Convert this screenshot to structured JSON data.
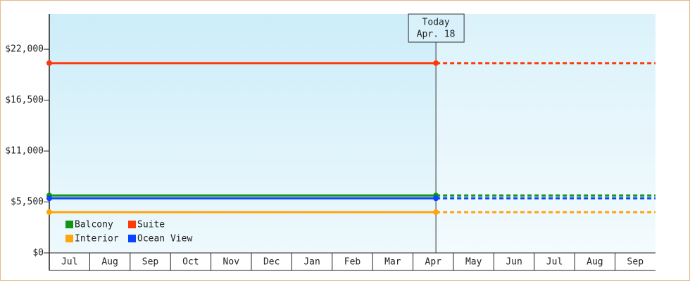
{
  "chart_data": {
    "type": "line",
    "categories": [
      "Jul",
      "Aug",
      "Sep",
      "Oct",
      "Nov",
      "Dec",
      "Jan",
      "Feb",
      "Mar",
      "Apr",
      "May",
      "Jun",
      "Jul",
      "Aug",
      "Sep"
    ],
    "today_label": [
      "Today",
      "Apr. 18"
    ],
    "series": [
      {
        "name": "Balcony",
        "color": "#129612",
        "value": 6200
      },
      {
        "name": "Suite",
        "color": "#ff3a0a",
        "value": 20500
      },
      {
        "name": "Interior",
        "color": "#ffa40a",
        "value": 4400
      },
      {
        "name": "Ocean View",
        "color": "#0a44ff",
        "value": 5900
      }
    ],
    "ylim": [
      0,
      25800
    ],
    "yticks": [
      {
        "value": 0,
        "label": "$0"
      },
      {
        "value": 5500,
        "label": "$5,500"
      },
      {
        "value": 11000,
        "label": "$11,000"
      },
      {
        "value": 16500,
        "label": "$16,500"
      },
      {
        "value": 22000,
        "label": "$22,000"
      }
    ]
  }
}
